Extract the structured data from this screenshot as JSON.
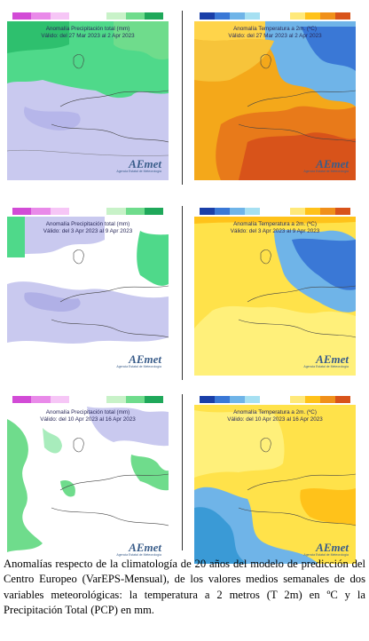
{
  "caption": "Anomalías respecto de la climatología de 20 años del modelo de predicción del Centro Europeo (VarEPS-Mensual), de los valores medios semanales de dos variables meteorológicas: la temperatura a 2 metros (T 2m) en ºC y la Precipitación Total (PCP) en mm.",
  "logo": {
    "text": "AEmet",
    "subtitle": "Agencia Estatal de Meteorología"
  },
  "colors": {
    "precip_scale": [
      "#d24bd6",
      "#e98ae9",
      "#f6c6f6",
      "#ffffff",
      "#ffffff",
      "#c8f2c8",
      "#6fdc8c",
      "#1fa85a"
    ],
    "temp_scale": [
      "#1a3fa8",
      "#3a78d6",
      "#6fb4e8",
      "#a6e0f2",
      "#ffffff",
      "#ffffff",
      "#ffe97a",
      "#ffc21a",
      "#f0901a",
      "#d8531a"
    ]
  },
  "panels": [
    {
      "id": "precip-w1",
      "variable": "precipitation",
      "title": "Anomalía Precipitación total (mm)",
      "period": "Válido: del 27 Mar 2023 al 2 Apr 2023"
    },
    {
      "id": "temp-w1",
      "variable": "temperature",
      "title": "Anomalía Temperatura a 2m. (ºC)",
      "period": "Válido: del 27 Mar 2023 al 2 Apr 2023"
    },
    {
      "id": "precip-w2",
      "variable": "precipitation",
      "title": "Anomalía Precipitación total (mm)",
      "period": "Válido: del 3 Apr 2023 al 9 Apr 2023"
    },
    {
      "id": "temp-w2",
      "variable": "temperature",
      "title": "Anomalía Temperatura a 2m. (ºC)",
      "period": "Válido: del 3 Apr 2023 al 9 Apr 2023"
    },
    {
      "id": "precip-w3",
      "variable": "precipitation",
      "title": "Anomalía Precipitación total (mm)",
      "period": "Válido: del 10 Apr 2023 al 16 Apr 2023"
    },
    {
      "id": "temp-w3",
      "variable": "temperature",
      "title": "Anomalía Temperatura a 2m. (ºC)",
      "period": "Válido: del 10 Apr 2023 al 16 Apr 2023"
    }
  ]
}
